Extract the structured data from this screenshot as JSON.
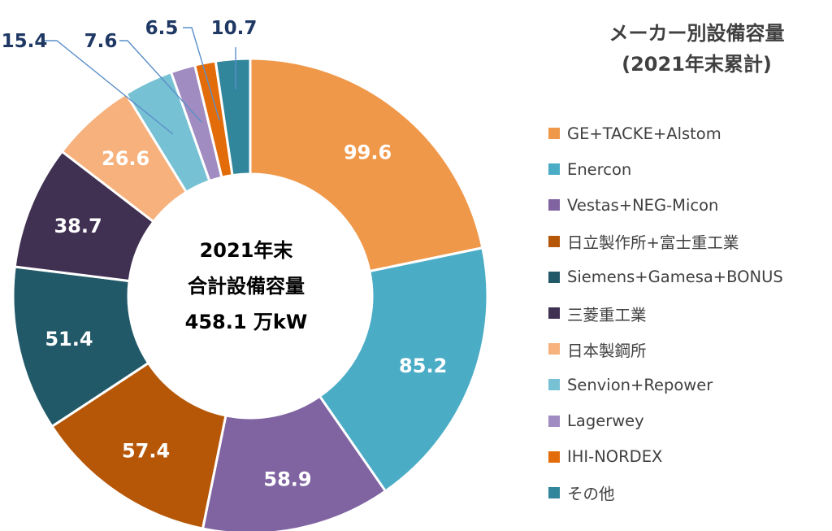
{
  "chart_data": {
    "type": "pie",
    "donut": true,
    "categories": [
      "GE+TACKE+Alstom",
      "Enercon",
      "Vestas+NEG-Micon",
      "日立製作所+富士重工業",
      "Siemens+Gamesa+BONUS",
      "三菱重工業",
      "日本製鋼所",
      "Senvion+Repower",
      "Lagerwey",
      "IHI-NORDEX",
      "その他"
    ],
    "values": [
      99.6,
      85.2,
      58.9,
      57.4,
      51.4,
      38.7,
      26.6,
      15.4,
      7.6,
      6.5,
      10.7
    ],
    "value_labels": [
      "99.6",
      "85.2",
      "58.9",
      "57.4",
      "51.4",
      "38.7",
      "26.6",
      "15.4",
      "7.6",
      "6.5",
      "10.7"
    ],
    "colors": [
      "#f0984a",
      "#4bacc6",
      "#8064a2",
      "#b65708",
      "#215968",
      "#403152",
      "#f6b17c",
      "#76c1d4",
      "#a08cc0",
      "#e36c0a",
      "#31869b"
    ],
    "center_text": [
      "2021年末",
      "合計設備容量",
      "458.1 万kW"
    ],
    "legend_title": [
      "メーカー別設備容量",
      "(2021年末累計)"
    ],
    "legend_position": "right",
    "start_angle_deg": 0,
    "direction": "clockwise"
  }
}
